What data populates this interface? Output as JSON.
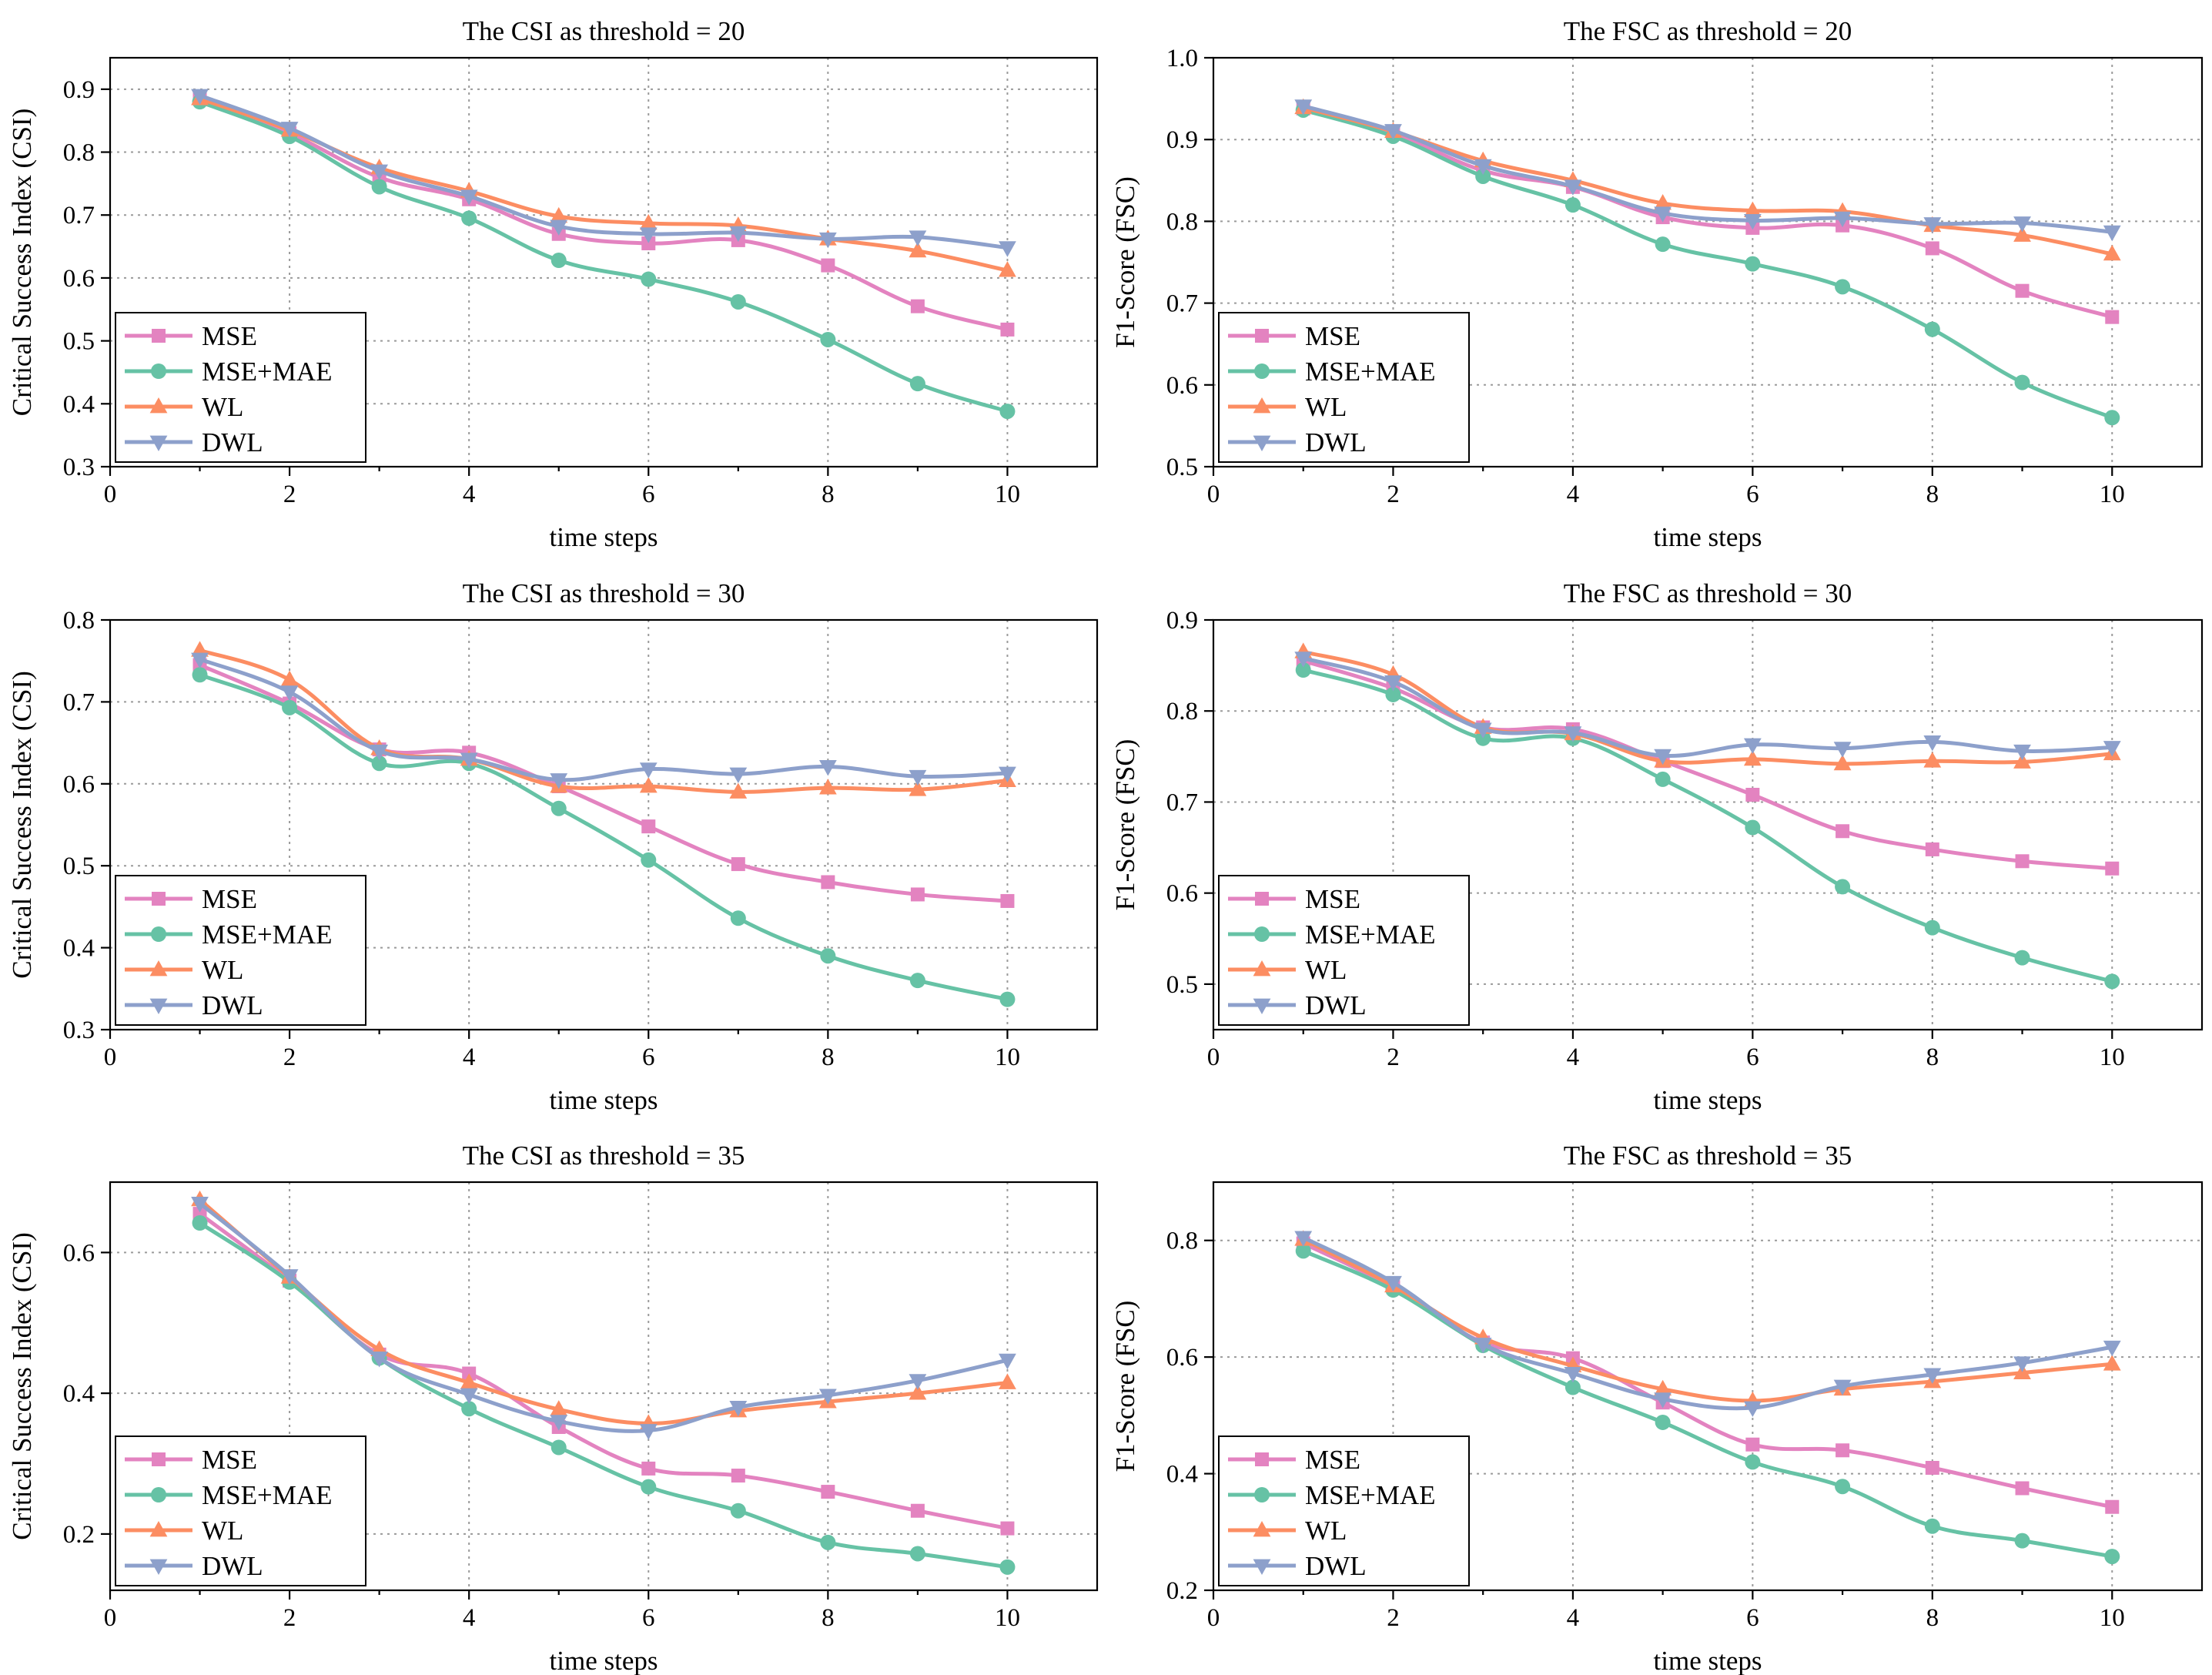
{
  "chart_data": [
    {
      "type": "line",
      "title": "The CSI as threshold = 20",
      "xlabel": "time steps",
      "ylabel": "Critical Success Index (CSI)",
      "xlim": [
        0,
        11
      ],
      "ylim": [
        0.3,
        0.95
      ],
      "xticks": [
        0,
        2,
        4,
        6,
        8,
        10
      ],
      "yticks": [
        0.3,
        0.4,
        0.5,
        0.6,
        0.7,
        0.8,
        0.9
      ],
      "ytick_labels": [
        "0.3",
        "0.4",
        "0.5",
        "0.6",
        "0.7",
        "0.8",
        "0.9"
      ],
      "x": [
        1,
        2,
        3,
        4,
        5,
        6,
        7,
        8,
        9,
        10
      ],
      "legend": "bottom-left",
      "series": [
        {
          "name": "MSE",
          "values": [
            0.885,
            0.83,
            0.76,
            0.725,
            0.67,
            0.655,
            0.66,
            0.62,
            0.555,
            0.518
          ]
        },
        {
          "name": "MSE+MAE",
          "values": [
            0.88,
            0.825,
            0.745,
            0.695,
            0.628,
            0.598,
            0.562,
            0.502,
            0.432,
            0.388
          ]
        },
        {
          "name": "WL",
          "values": [
            0.885,
            0.835,
            0.775,
            0.738,
            0.698,
            0.687,
            0.683,
            0.662,
            0.643,
            0.612
          ]
        },
        {
          "name": "DWL",
          "values": [
            0.89,
            0.838,
            0.77,
            0.73,
            0.682,
            0.67,
            0.672,
            0.662,
            0.665,
            0.648
          ]
        }
      ]
    },
    {
      "type": "line",
      "title": "The FSC as threshold = 20",
      "xlabel": "time steps",
      "ylabel": "F1-Score (FSC)",
      "xlim": [
        0,
        11
      ],
      "ylim": [
        0.5,
        1.0
      ],
      "xticks": [
        0,
        2,
        4,
        6,
        8,
        10
      ],
      "yticks": [
        0.5,
        0.6,
        0.7,
        0.8,
        0.9,
        1.0
      ],
      "ytick_labels": [
        "0.5",
        "0.6",
        "0.7",
        "0.8",
        "0.9",
        "1.0"
      ],
      "x": [
        1,
        2,
        3,
        4,
        5,
        6,
        7,
        8,
        9,
        10
      ],
      "legend": "bottom-left",
      "series": [
        {
          "name": "MSE",
          "values": [
            0.938,
            0.908,
            0.862,
            0.842,
            0.805,
            0.792,
            0.795,
            0.767,
            0.715,
            0.683
          ]
        },
        {
          "name": "MSE+MAE",
          "values": [
            0.936,
            0.904,
            0.855,
            0.82,
            0.772,
            0.748,
            0.72,
            0.668,
            0.603,
            0.56
          ]
        },
        {
          "name": "WL",
          "values": [
            0.939,
            0.91,
            0.874,
            0.85,
            0.822,
            0.813,
            0.812,
            0.795,
            0.783,
            0.76
          ]
        },
        {
          "name": "DWL",
          "values": [
            0.941,
            0.911,
            0.868,
            0.843,
            0.81,
            0.801,
            0.804,
            0.797,
            0.798,
            0.787
          ]
        }
      ]
    },
    {
      "type": "line",
      "title": "The CSI as threshold = 30",
      "xlabel": "time steps",
      "ylabel": "Critical Success Index (CSI)",
      "xlim": [
        0,
        11
      ],
      "ylim": [
        0.3,
        0.8
      ],
      "xticks": [
        0,
        2,
        4,
        6,
        8,
        10
      ],
      "yticks": [
        0.3,
        0.4,
        0.5,
        0.6,
        0.7,
        0.8
      ],
      "ytick_labels": [
        "0.3",
        "0.4",
        "0.5",
        "0.6",
        "0.7",
        "0.8"
      ],
      "x": [
        1,
        2,
        3,
        4,
        5,
        6,
        7,
        8,
        9,
        10
      ],
      "legend": "bottom-left",
      "series": [
        {
          "name": "MSE",
          "values": [
            0.745,
            0.698,
            0.642,
            0.638,
            0.597,
            0.548,
            0.502,
            0.48,
            0.465,
            0.457
          ]
        },
        {
          "name": "MSE+MAE",
          "values": [
            0.733,
            0.693,
            0.625,
            0.625,
            0.57,
            0.507,
            0.436,
            0.39,
            0.36,
            0.337
          ]
        },
        {
          "name": "WL",
          "values": [
            0.763,
            0.727,
            0.643,
            0.63,
            0.597,
            0.597,
            0.59,
            0.595,
            0.593,
            0.604
          ]
        },
        {
          "name": "DWL",
          "values": [
            0.752,
            0.712,
            0.64,
            0.63,
            0.605,
            0.618,
            0.612,
            0.621,
            0.609,
            0.613
          ]
        }
      ]
    },
    {
      "type": "line",
      "title": "The FSC as threshold = 30",
      "xlabel": "time steps",
      "ylabel": "F1-Score (FSC)",
      "xlim": [
        0,
        11
      ],
      "ylim": [
        0.45,
        0.9
      ],
      "xticks": [
        0,
        2,
        4,
        6,
        8,
        10
      ],
      "yticks": [
        0.5,
        0.6,
        0.7,
        0.8,
        0.9
      ],
      "ytick_labels": [
        "0.5",
        "0.6",
        "0.7",
        "0.8",
        "0.9"
      ],
      "x": [
        1,
        2,
        3,
        4,
        5,
        6,
        7,
        8,
        9,
        10
      ],
      "legend": "bottom-left",
      "series": [
        {
          "name": "MSE",
          "values": [
            0.855,
            0.825,
            0.782,
            0.78,
            0.745,
            0.708,
            0.668,
            0.648,
            0.635,
            0.627
          ]
        },
        {
          "name": "MSE+MAE",
          "values": [
            0.845,
            0.818,
            0.77,
            0.77,
            0.725,
            0.672,
            0.607,
            0.562,
            0.529,
            0.503
          ]
        },
        {
          "name": "WL",
          "values": [
            0.865,
            0.84,
            0.782,
            0.775,
            0.745,
            0.747,
            0.742,
            0.745,
            0.744,
            0.753
          ]
        },
        {
          "name": "DWL",
          "values": [
            0.858,
            0.832,
            0.78,
            0.776,
            0.751,
            0.763,
            0.759,
            0.766,
            0.756,
            0.76
          ]
        }
      ]
    },
    {
      "type": "line",
      "title": "The CSI as threshold = 35",
      "xlabel": "time steps",
      "ylabel": "Critical Success Index (CSI)",
      "xlim": [
        0,
        11
      ],
      "ylim": [
        0.12,
        0.7
      ],
      "xticks": [
        0,
        2,
        4,
        6,
        8,
        10
      ],
      "yticks": [
        0.2,
        0.4,
        0.6
      ],
      "ytick_labels": [
        "0.2",
        "0.4",
        "0.6"
      ],
      "x": [
        1,
        2,
        3,
        4,
        5,
        6,
        7,
        8,
        9,
        10
      ],
      "legend": "bottom-left",
      "series": [
        {
          "name": "MSE",
          "values": [
            0.655,
            0.56,
            0.455,
            0.428,
            0.352,
            0.293,
            0.283,
            0.26,
            0.233,
            0.208
          ]
        },
        {
          "name": "MSE+MAE",
          "values": [
            0.642,
            0.558,
            0.45,
            0.378,
            0.323,
            0.267,
            0.233,
            0.188,
            0.172,
            0.153
          ]
        },
        {
          "name": "WL",
          "values": [
            0.675,
            0.565,
            0.462,
            0.415,
            0.377,
            0.357,
            0.375,
            0.388,
            0.4,
            0.415
          ]
        },
        {
          "name": "DWL",
          "values": [
            0.67,
            0.567,
            0.45,
            0.398,
            0.36,
            0.347,
            0.38,
            0.397,
            0.418,
            0.447
          ]
        }
      ]
    },
    {
      "type": "line",
      "title": "The FSC as threshold = 35",
      "xlabel": "time steps",
      "ylabel": "F1-Score (FSC)",
      "xlim": [
        0,
        11
      ],
      "ylim": [
        0.2,
        0.9
      ],
      "xticks": [
        0,
        2,
        4,
        6,
        8,
        10
      ],
      "yticks": [
        0.2,
        0.4,
        0.6,
        0.8
      ],
      "ytick_labels": [
        "0.2",
        "0.4",
        "0.6",
        "0.8"
      ],
      "x": [
        1,
        2,
        3,
        4,
        5,
        6,
        7,
        8,
        9,
        10
      ],
      "legend": "bottom-left",
      "series": [
        {
          "name": "MSE",
          "values": [
            0.795,
            0.72,
            0.625,
            0.598,
            0.522,
            0.45,
            0.44,
            0.41,
            0.375,
            0.343
          ]
        },
        {
          "name": "MSE+MAE",
          "values": [
            0.782,
            0.715,
            0.62,
            0.548,
            0.488,
            0.42,
            0.378,
            0.31,
            0.285,
            0.258
          ]
        },
        {
          "name": "WL",
          "values": [
            0.802,
            0.722,
            0.633,
            0.585,
            0.545,
            0.525,
            0.545,
            0.558,
            0.573,
            0.588
          ]
        },
        {
          "name": "DWL",
          "values": [
            0.805,
            0.728,
            0.622,
            0.572,
            0.528,
            0.513,
            0.55,
            0.57,
            0.59,
            0.617
          ]
        }
      ]
    }
  ],
  "series_styles": {
    "MSE": {
      "color": "#e383c0",
      "marker": "square"
    },
    "MSE+MAE": {
      "color": "#66c2a5",
      "marker": "circle"
    },
    "WL": {
      "color": "#fc8d62",
      "marker": "triangle-up"
    },
    "DWL": {
      "color": "#8da0cb",
      "marker": "triangle-down"
    }
  }
}
